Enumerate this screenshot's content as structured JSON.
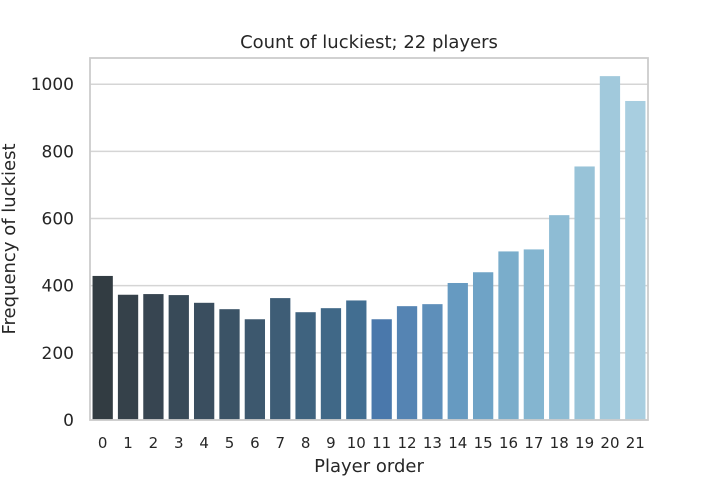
{
  "chart_data": {
    "type": "bar",
    "title": "Count of luckiest; 22 players",
    "xlabel": "Player order",
    "ylabel": "Frequency of luckiest",
    "categories": [
      "0",
      "1",
      "2",
      "3",
      "4",
      "5",
      "6",
      "7",
      "8",
      "9",
      "10",
      "11",
      "12",
      "13",
      "14",
      "15",
      "16",
      "17",
      "18",
      "19",
      "20",
      "21"
    ],
    "values": [
      429,
      373,
      375,
      372,
      349,
      330,
      300,
      363,
      321,
      333,
      356,
      300,
      339,
      345,
      408,
      440,
      502,
      508,
      610,
      755,
      1024,
      950
    ],
    "ylim": [
      0,
      1078
    ],
    "yticks": [
      0,
      200,
      400,
      600,
      800,
      1000
    ],
    "grid": true,
    "palette": "Blues_d",
    "colors": [
      "#323c42",
      "#343f48",
      "#36434e",
      "#384753",
      "#394b59",
      "#3b4f5f",
      "#3c5365",
      "#3d576b",
      "#3e5c72",
      "#3f6078",
      "#40647f",
      "#4269a5",
      "#4a7fb0",
      "#558bb8",
      "#5f97c0",
      "#6aa2c6",
      "#75abcb",
      "#81b4d0",
      "#8cbcd4",
      "#97c3d8",
      "#a2cadc",
      "#a9cfe0"
    ],
    "bar_colors": [
      "#323c42",
      "#35414a",
      "#374551",
      "#384a58",
      "#3a4e5f",
      "#3b5366",
      "#3d586e",
      "#3e5d76",
      "#3f637f",
      "#406887",
      "#426e91",
      "#4a78ab",
      "#5584b3",
      "#5e8fba",
      "#669ac1",
      "#6fa3c6",
      "#7aadcb",
      "#84b5d0",
      "#8ebcd4",
      "#98c3d8",
      "#a1c9dc",
      "#a8cee0"
    ],
    "background": "#ffffff",
    "grid_color": "#d5d5d5",
    "spine_color": "#cccccc"
  }
}
